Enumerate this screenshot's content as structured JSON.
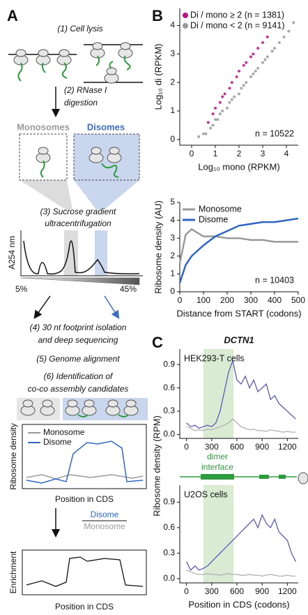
{
  "panel_a": {
    "label": "A",
    "steps": [
      "(1) Cell lysis",
      "(2) RNase I",
      "digestion",
      "(3) Sucrose gradient",
      "ultracentrifugation",
      "(4) 30 nt footprint isolation",
      "and deep sequencing",
      "(5) Genome alignment",
      "(6) Identification of",
      "co-co assembly candidates"
    ],
    "fractions": [
      "Monosomes",
      "Disomes"
    ],
    "a254_ylabel": "A254 nm",
    "gradient": [
      "5%",
      "45%"
    ],
    "density_plot": {
      "ylabel": "Ribosome density",
      "xlabel": "Position in CDS",
      "legend": [
        "Monosome",
        "Disome"
      ]
    },
    "ratio": [
      "Disome",
      "Monosome"
    ],
    "enrichment_plot": {
      "ylabel": "Enrichment",
      "xlabel": "Position in CDS"
    }
  },
  "gene_diagram": {
    "label": [
      "dimer",
      "interface"
    ]
  },
  "chart_data": [
    {
      "type": "scatter",
      "panel_label": "B",
      "xlabel": "Log₁₀ mono (RPKM)",
      "ylabel": "Log₁₀ di (RPKM)",
      "annotation": "n = 10522",
      "legend": "upper left",
      "xlim": [
        -0.5,
        4.5
      ],
      "ylim": [
        -0.2,
        4.6
      ],
      "xticks": [
        0,
        1,
        2,
        3,
        4
      ],
      "yticks": [
        0,
        1,
        2,
        3,
        4
      ],
      "series": [
        {
          "name": "Di / mono ≥ 2 (n = 1381)",
          "color": "#b5167e",
          "x": [
            0.7,
            0.9,
            1.0,
            1.2,
            1.3,
            1.4,
            1.6,
            1.7,
            1.9,
            2.0,
            2.2,
            2.3,
            2.5,
            2.6,
            2.8,
            3.0,
            3.2
          ],
          "values": [
            0.6,
            0.9,
            1.1,
            1.3,
            1.5,
            1.6,
            1.8,
            2.0,
            2.2,
            2.4,
            2.6,
            2.7,
            2.9,
            3.0,
            3.2,
            3.4,
            3.6
          ]
        },
        {
          "name": "Di / mono < 2 (n = 9141)",
          "color": "#9a9a9a",
          "x": [
            0.3,
            0.5,
            0.6,
            0.8,
            0.9,
            1.0,
            1.1,
            1.2,
            1.3,
            1.5,
            1.6,
            1.7,
            1.8,
            2.0,
            2.1,
            2.2,
            2.3,
            2.5,
            2.6,
            2.7,
            2.8,
            3.0,
            3.1,
            3.2,
            3.4,
            3.5,
            3.7,
            3.9,
            4.1,
            4.3
          ],
          "values": [
            0.1,
            0.2,
            0.2,
            0.4,
            0.5,
            0.7,
            0.7,
            0.9,
            1.0,
            1.1,
            1.3,
            1.4,
            1.5,
            1.6,
            1.8,
            1.9,
            2.0,
            2.2,
            2.3,
            2.4,
            2.5,
            2.7,
            2.8,
            2.9,
            3.1,
            3.2,
            3.4,
            3.6,
            3.8,
            4.1
          ]
        }
      ]
    },
    {
      "type": "line",
      "xlabel": "Distance from START (codons)",
      "ylabel": "Ribosome density (AU)",
      "annotation": "n = 10403",
      "legend": "upper left",
      "xlim": [
        0,
        500
      ],
      "ylim": [
        0,
        5
      ],
      "xticks": [
        0,
        100,
        200,
        300,
        400,
        500
      ],
      "yticks": [
        0,
        1,
        2,
        3,
        4,
        5
      ],
      "x": [
        0,
        25,
        50,
        75,
        100,
        150,
        200,
        250,
        300,
        350,
        400,
        450,
        500
      ],
      "series": [
        {
          "name": "Monosome",
          "color": "#9a9a9a",
          "values": [
            1.6,
            3.2,
            3.5,
            3.3,
            3.1,
            3.1,
            3.0,
            3.0,
            2.9,
            2.9,
            2.8,
            2.8,
            2.8
          ]
        },
        {
          "name": "Disome",
          "color": "#2f66c0",
          "values": [
            0.5,
            1.5,
            2.0,
            2.3,
            2.6,
            3.1,
            3.4,
            3.7,
            3.8,
            3.9,
            3.9,
            4.0,
            4.1
          ]
        }
      ]
    },
    {
      "type": "line",
      "panel_label": "C",
      "title": "DCTN1",
      "annotation": "HEK293-T cells",
      "ylabel": "Ribosome density (RPM)",
      "highlight": [
        200,
        560
      ],
      "xlim": [
        -80,
        1330
      ],
      "ylim": [
        -0.05,
        1.1
      ],
      "xticks": [
        0,
        300,
        600,
        900,
        1200
      ],
      "yticks": [
        {
          "value": 0,
          "label": "0.0"
        },
        0.3,
        0.6,
        0.9
      ],
      "x": [
        0,
        50,
        100,
        150,
        200,
        250,
        300,
        350,
        400,
        450,
        500,
        550,
        600,
        650,
        700,
        750,
        800,
        850,
        900,
        950,
        1000,
        1050,
        1100,
        1150,
        1200,
        1250,
        1300
      ],
      "series": [
        {
          "color": "#5a5ab8",
          "values": [
            0.15,
            0.1,
            0.12,
            0.08,
            0.1,
            0.12,
            0.1,
            0.15,
            0.3,
            0.55,
            0.8,
            0.95,
            0.7,
            0.65,
            0.75,
            0.6,
            0.7,
            0.55,
            0.6,
            0.65,
            0.45,
            0.5,
            0.4,
            0.35,
            0.3,
            0.25,
            0.2
          ]
        },
        {
          "color": "#b0b0b0",
          "values": [
            0.1,
            0.08,
            0.05,
            0.06,
            0.05,
            0.07,
            0.06,
            0.08,
            0.1,
            0.12,
            0.15,
            0.2,
            0.15,
            0.1,
            0.08,
            0.06,
            0.07,
            0.05,
            0.05,
            0.04,
            0.06,
            0.05,
            0.04,
            0.03,
            0.04,
            0.03,
            0.03
          ]
        }
      ]
    },
    {
      "type": "line",
      "annotation": "U2OS cells",
      "xlabel": "Position in CDS (codons)",
      "highlight": [
        200,
        560
      ],
      "xlim": [
        -80,
        1330
      ],
      "ylim": [
        -0.05,
        1.1
      ],
      "xticks": [
        0,
        300,
        600,
        900,
        1200
      ],
      "yticks": [
        {
          "value": 0,
          "label": "0.0"
        },
        0.3,
        0.6,
        0.9
      ],
      "x": [
        0,
        50,
        100,
        150,
        200,
        250,
        300,
        350,
        400,
        450,
        500,
        550,
        600,
        650,
        700,
        750,
        800,
        850,
        900,
        950,
        1000,
        1050,
        1100,
        1150,
        1200,
        1250,
        1300
      ],
      "series": [
        {
          "color": "#5a5ab8",
          "values": [
            0.2,
            0.1,
            0.15,
            0.1,
            0.12,
            0.15,
            0.2,
            0.25,
            0.3,
            0.35,
            0.4,
            0.45,
            0.5,
            0.55,
            0.6,
            0.65,
            0.7,
            0.6,
            0.75,
            0.65,
            0.6,
            0.7,
            0.55,
            0.5,
            0.45,
            0.3,
            0.2
          ]
        },
        {
          "color": "#b0b0b0",
          "values": [
            0.1,
            0.08,
            0.06,
            0.05,
            0.05,
            0.06,
            0.05,
            0.05,
            0.04,
            0.05,
            0.06,
            0.05,
            0.05,
            0.04,
            0.04,
            0.05,
            0.04,
            0.04,
            0.03,
            0.04,
            0.05,
            0.04,
            0.03,
            0.03,
            0.04,
            0.03,
            0.03
          ]
        }
      ]
    }
  ]
}
